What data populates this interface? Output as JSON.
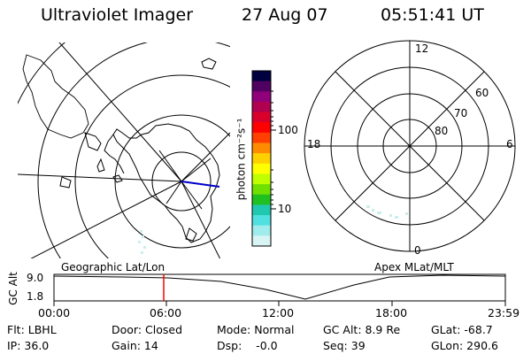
{
  "header": {
    "instrument": "Ultraviolet Imager",
    "date": "27 Aug 07",
    "time": "05:51:41 UT"
  },
  "left_map": {
    "label": "Geographic Lat/Lon"
  },
  "colorbar": {
    "unit_label": "photon cm⁻²s⁻¹",
    "tick_labels": [
      "100",
      "10"
    ],
    "colors": [
      "#000040",
      "#500060",
      "#90007a",
      "#b00050",
      "#d8002a",
      "#ff0000",
      "#ff4000",
      "#ff8c00",
      "#ffd000",
      "#ffff00",
      "#c0ff00",
      "#70e000",
      "#20c020",
      "#20c8b0",
      "#50e0e0",
      "#a0ecec",
      "#d8f4f4"
    ]
  },
  "right_map": {
    "label": "Apex MLat/MLT",
    "mlt_labels": [
      "12",
      "18",
      "6",
      "0"
    ],
    "lat_labels": [
      "60",
      "70",
      "80"
    ]
  },
  "timeline": {
    "y_axis_label": "GC Alt",
    "y_ticks": [
      "9.0",
      "1.8"
    ],
    "x_ticks": [
      "00:00",
      "06:00",
      "12:00",
      "18:00",
      "23:59"
    ],
    "marker_color": "#ff0000"
  },
  "footer": {
    "flt": "Flt: LBHL",
    "ip": "IP: 36.0",
    "door": "Door: Closed",
    "gain": "Gain: 14",
    "mode": "Mode: Normal",
    "dsp": "Dsp:    -0.0",
    "gc_alt": "GC Alt: 8.9 Re",
    "seq": "Seq: 39",
    "glat": "GLat: -68.7",
    "glon": "GLon: 290.6"
  }
}
